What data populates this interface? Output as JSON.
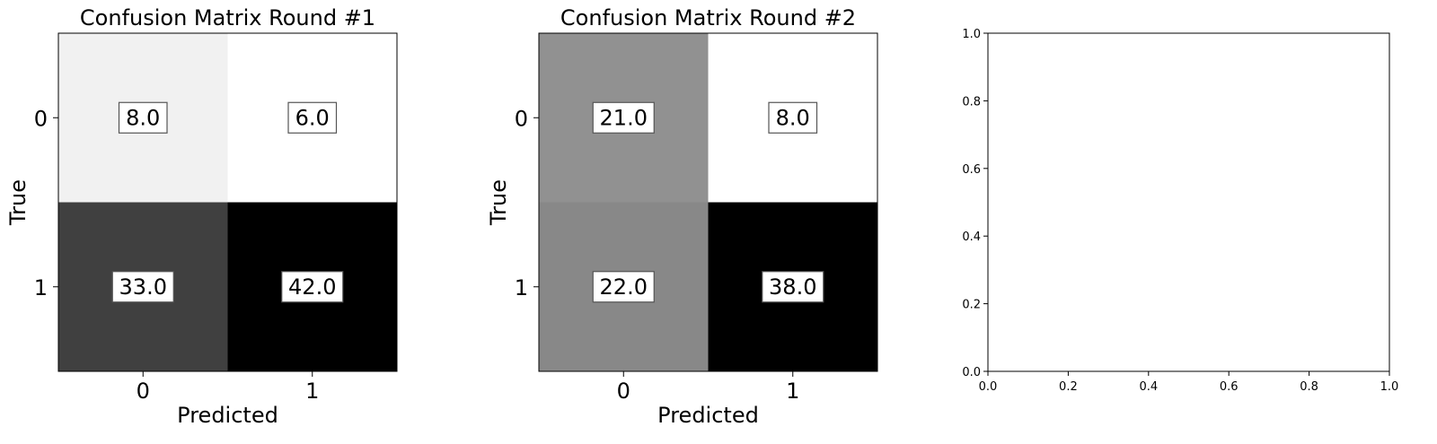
{
  "chart_data": [
    {
      "type": "heatmap",
      "title": "Confusion Matrix Round #1",
      "xlabel": "Predicted",
      "ylabel": "True",
      "x_categories": [
        "0",
        "1"
      ],
      "y_categories": [
        "0",
        "1"
      ],
      "values": [
        [
          8.0,
          6.0
        ],
        [
          33.0,
          42.0
        ]
      ],
      "cell_labels": [
        [
          "8.0",
          "6.0"
        ],
        [
          "33.0",
          "42.0"
        ]
      ],
      "colormap": "Greys"
    },
    {
      "type": "heatmap",
      "title": "Confusion Matrix Round #2",
      "xlabel": "Predicted",
      "ylabel": "True",
      "x_categories": [
        "0",
        "1"
      ],
      "y_categories": [
        "0",
        "1"
      ],
      "values": [
        [
          21.0,
          8.0
        ],
        [
          22.0,
          38.0
        ]
      ],
      "cell_labels": [
        [
          "21.0",
          "8.0"
        ],
        [
          "22.0",
          "38.0"
        ]
      ],
      "colormap": "Greys"
    },
    {
      "type": "scatter",
      "title": "",
      "xlabel": "",
      "ylabel": "",
      "xlim": [
        0.0,
        1.0
      ],
      "ylim": [
        0.0,
        1.0
      ],
      "x_ticks": [
        "0.0",
        "0.2",
        "0.4",
        "0.6",
        "0.8",
        "1.0"
      ],
      "y_ticks": [
        "0.0",
        "0.2",
        "0.4",
        "0.6",
        "0.8",
        "1.0"
      ],
      "series": []
    }
  ]
}
